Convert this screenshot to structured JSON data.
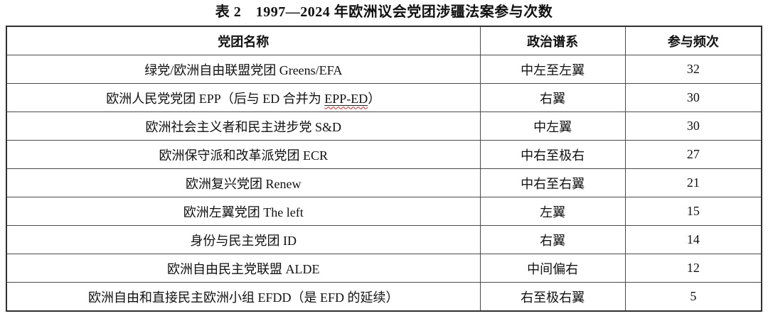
{
  "page": {
    "title": "表 2　1997—2024 年欧洲议会党团涉疆法案参与次数"
  },
  "table": {
    "headers": {
      "name": "党团名称",
      "spectrum": "政治谱系",
      "frequency": "参与频次"
    },
    "rows": [
      {
        "name": "绿党/欧洲自由联盟党团 Greens/EFA",
        "spectrum": "中左至左翼",
        "frequency": "32"
      },
      {
        "name_pre": "欧洲人民党党团 EPP（后与 ED 合并为 ",
        "name_marked": "EPP-ED",
        "name_post": "）",
        "spectrum": "右翼",
        "frequency": "30"
      },
      {
        "name": "欧洲社会主义者和民主进步党 S&D",
        "spectrum": "中左翼",
        "frequency": "30"
      },
      {
        "name": "欧洲保守派和改革派党团 ECR",
        "spectrum": "中右至极右",
        "frequency": "27"
      },
      {
        "name": "欧洲复兴党团 Renew",
        "spectrum": "中右至右翼",
        "frequency": "21"
      },
      {
        "name": "欧洲左翼党团 The left",
        "spectrum": "左翼",
        "frequency": "15"
      },
      {
        "name": "身份与民主党团 ID",
        "spectrum": "右翼",
        "frequency": "14"
      },
      {
        "name": "欧洲自由民主党联盟 ALDE",
        "spectrum": "中间偏右",
        "frequency": "12"
      },
      {
        "name": "欧洲自由和直接民主欧洲小组 EFDD（是 EFD 的延续）",
        "spectrum": "右至极右翼",
        "frequency": "5"
      }
    ],
    "spellcheck_underline_color": "#e02020",
    "border_color": "#2f2f2f"
  }
}
